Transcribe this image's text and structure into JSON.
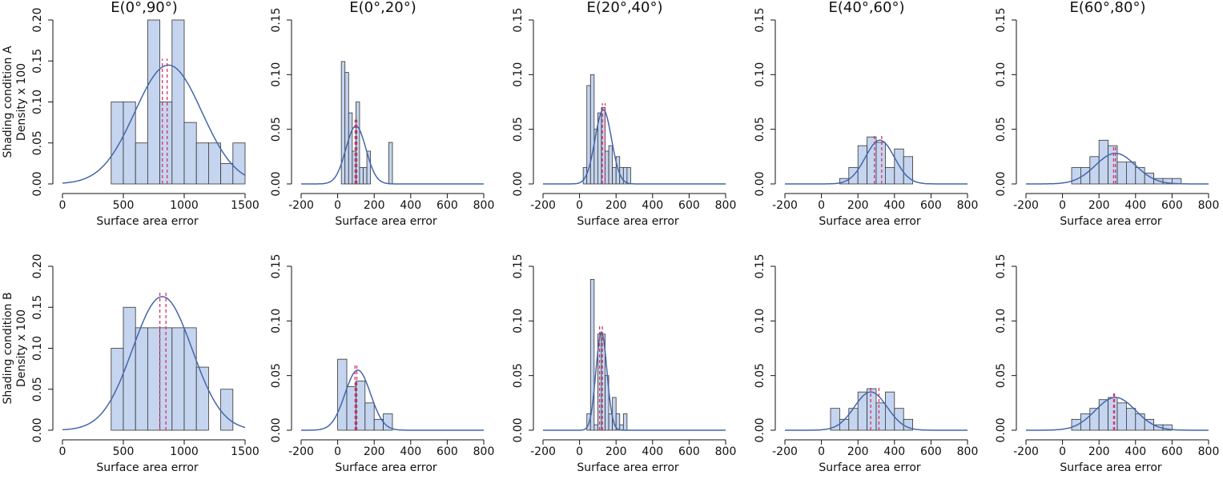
{
  "chart_data": [
    {
      "type": "histogram",
      "title": "E(0°,90°)",
      "ylabel": [
        "Shading condition A",
        "Density x 100"
      ],
      "xlabel": "Surface area error",
      "bins": [
        400,
        500,
        600,
        700,
        800,
        900,
        1000,
        1100,
        1200,
        1300,
        1400,
        1500
      ],
      "values": [
        0.1,
        0.1,
        0.05,
        0.2,
        0.1,
        0.2,
        0.075,
        0.05,
        0.05,
        0.025,
        0.05
      ],
      "color": "#c5d5ef",
      "curve": {
        "mean": 870,
        "sd": 275,
        "peak": 0.145,
        "color": "#4466aa"
      },
      "vlines": [
        820,
        860
      ],
      "vline_color": "#d6336c",
      "xlim": [
        0,
        1500
      ],
      "ylim": [
        0,
        0.2
      ],
      "xticks": [
        0,
        500,
        1000,
        1500
      ],
      "yticks": [
        {
          "value": 0,
          "label": "0.00"
        },
        {
          "value": 0.05,
          "label": "0.05"
        },
        {
          "value": 0.1,
          "label": "0.10"
        },
        {
          "value": 0.15,
          "label": "0.15"
        },
        {
          "value": 0.2,
          "label": "0.20"
        }
      ]
    },
    {
      "type": "histogram",
      "title": "E(0°,20°)",
      "xlabel": "Surface area error",
      "bins": [
        20,
        40,
        60,
        80,
        100,
        120,
        140,
        160,
        180,
        200,
        220,
        240,
        260,
        280,
        300
      ],
      "values": [
        0.112,
        0.102,
        0.065,
        0.03,
        0.075,
        0.015,
        0.015,
        0.03,
        0,
        0,
        0,
        0,
        0,
        0.038
      ],
      "color": "#c5d5ef",
      "curve": {
        "mean": 100,
        "sd": 55,
        "peak": 0.053,
        "color": "#4466aa"
      },
      "vlines": [
        95,
        105
      ],
      "vline_color": "#d6336c",
      "xlim": [
        -200,
        800
      ],
      "ylim": [
        0,
        0.15
      ],
      "xticks": [
        -200,
        0,
        200,
        400,
        600,
        800
      ],
      "yticks": [
        {
          "value": 0,
          "label": "0.00"
        },
        {
          "value": 0.05,
          "label": "0.05"
        },
        {
          "value": 0.1,
          "label": "0.10"
        },
        {
          "value": 0.15,
          "label": "0.15"
        }
      ]
    },
    {
      "type": "histogram",
      "title": "E(20°,40°)",
      "xlabel": "Surface area error",
      "bins": [
        20,
        40,
        60,
        80,
        100,
        120,
        140,
        160,
        180,
        200,
        220,
        240,
        260,
        280
      ],
      "values": [
        0.015,
        0.09,
        0.1,
        0.05,
        0.065,
        0.07,
        0.03,
        0.035,
        0.015,
        0.025,
        0.015,
        0.015,
        0.015
      ],
      "color": "#c5d5ef",
      "curve": {
        "mean": 130,
        "sd": 45,
        "peak": 0.068,
        "color": "#4466aa"
      },
      "vlines": [
        125,
        140
      ],
      "vline_color": "#d6336c",
      "xlim": [
        -200,
        800
      ],
      "ylim": [
        0,
        0.15
      ],
      "xticks": [
        -200,
        0,
        200,
        400,
        600,
        800
      ],
      "yticks": [
        {
          "value": 0,
          "label": "0.00"
        },
        {
          "value": 0.05,
          "label": "0.05"
        },
        {
          "value": 0.1,
          "label": "0.10"
        },
        {
          "value": 0.15,
          "label": "0.15"
        }
      ]
    },
    {
      "type": "histogram",
      "title": "E(40°,60°)",
      "xlabel": "Surface area error",
      "bins": [
        100,
        150,
        200,
        250,
        300,
        350,
        400,
        450,
        500
      ],
      "values": [
        0.005,
        0.015,
        0.035,
        0.043,
        0.038,
        0.015,
        0.032,
        0.025
      ],
      "color": "#c5d5ef",
      "curve": {
        "mean": 320,
        "sd": 80,
        "peak": 0.04,
        "color": "#4466aa"
      },
      "vlines": [
        290,
        330
      ],
      "vline_color": "#d6336c",
      "xlim": [
        -200,
        800
      ],
      "ylim": [
        0,
        0.15
      ],
      "xticks": [
        -200,
        0,
        200,
        400,
        600,
        800
      ],
      "yticks": [
        {
          "value": 0,
          "label": "0.00"
        },
        {
          "value": 0.05,
          "label": "0.05"
        },
        {
          "value": 0.1,
          "label": "0.10"
        },
        {
          "value": 0.15,
          "label": "0.15"
        }
      ]
    },
    {
      "type": "histogram",
      "title": "E(60°,80°)",
      "xlabel": "Surface area error",
      "bins": [
        50,
        100,
        150,
        200,
        250,
        300,
        350,
        400,
        450,
        500,
        550,
        600,
        650
      ],
      "values": [
        0.015,
        0.015,
        0.025,
        0.04,
        0.035,
        0.02,
        0.02,
        0.015,
        0.01,
        0.005,
        0.005,
        0.005
      ],
      "color": "#c5d5ef",
      "curve": {
        "mean": 290,
        "sd": 110,
        "peak": 0.028,
        "color": "#4466aa"
      },
      "vlines": [
        280,
        290
      ],
      "vline_color": "#d6336c",
      "xlim": [
        -200,
        800
      ],
      "ylim": [
        0,
        0.15
      ],
      "xticks": [
        -200,
        0,
        200,
        400,
        600,
        800
      ],
      "yticks": [
        {
          "value": 0,
          "label": "0.00"
        },
        {
          "value": 0.05,
          "label": "0.05"
        },
        {
          "value": 0.1,
          "label": "0.10"
        },
        {
          "value": 0.15,
          "label": "0.15"
        }
      ]
    },
    {
      "type": "histogram",
      "ylabel": [
        "Shading condition B",
        "Density x 100"
      ],
      "xlabel": "Surface area error",
      "bins": [
        400,
        500,
        600,
        700,
        800,
        900,
        1000,
        1100,
        1200,
        1300,
        1400
      ],
      "values": [
        0.1,
        0.15,
        0.125,
        0.125,
        0.125,
        0.125,
        0.125,
        0.077,
        0,
        0.05
      ],
      "color": "#c5d5ef",
      "curve": {
        "mean": 820,
        "sd": 245,
        "peak": 0.163,
        "color": "#4466aa"
      },
      "vlines": [
        800,
        850
      ],
      "vline_color": "#d6336c",
      "xlim": [
        0,
        1500
      ],
      "ylim": [
        0,
        0.2
      ],
      "xticks": [
        0,
        500,
        1000,
        1500
      ],
      "yticks": [
        {
          "value": 0,
          "label": "0.00"
        },
        {
          "value": 0.05,
          "label": "0.05"
        },
        {
          "value": 0.1,
          "label": "0.10"
        },
        {
          "value": 0.15,
          "label": "0.15"
        },
        {
          "value": 0.2,
          "label": "0.20"
        }
      ]
    },
    {
      "type": "histogram",
      "xlabel": "Surface area error",
      "bins": [
        0,
        50,
        100,
        150,
        200,
        250,
        300
      ],
      "values": [
        0.065,
        0.04,
        0.045,
        0.025,
        0.01,
        0.015
      ],
      "color": "#c5d5ef",
      "curve": {
        "mean": 110,
        "sd": 70,
        "peak": 0.055,
        "color": "#4466aa"
      },
      "vlines": [
        95,
        105
      ],
      "vline_color": "#d6336c",
      "xlim": [
        -200,
        800
      ],
      "ylim": [
        0,
        0.15
      ],
      "xticks": [
        -200,
        0,
        200,
        400,
        600,
        800
      ],
      "yticks": [
        {
          "value": 0,
          "label": "0.00"
        },
        {
          "value": 0.05,
          "label": "0.05"
        },
        {
          "value": 0.1,
          "label": "0.10"
        },
        {
          "value": 0.15,
          "label": "0.15"
        }
      ]
    },
    {
      "type": "histogram",
      "xlabel": "Surface area error",
      "bins": [
        40,
        60,
        80,
        100,
        120,
        140,
        160,
        180,
        200,
        220,
        240,
        260
      ],
      "values": [
        0.015,
        0.138,
        0.005,
        0.088,
        0.088,
        0.05,
        0.015,
        0.03,
        0.015,
        0.005,
        0.015
      ],
      "color": "#c5d5ef",
      "curve": {
        "mean": 120,
        "sd": 30,
        "peak": 0.09,
        "color": "#4466aa"
      },
      "vlines": [
        110,
        125
      ],
      "vline_color": "#d6336c",
      "xlim": [
        -200,
        800
      ],
      "ylim": [
        0,
        0.15
      ],
      "xticks": [
        -200,
        0,
        200,
        400,
        600,
        800
      ],
      "yticks": [
        {
          "value": 0,
          "label": "0.00"
        },
        {
          "value": 0.05,
          "label": "0.05"
        },
        {
          "value": 0.1,
          "label": "0.10"
        },
        {
          "value": 0.15,
          "label": "0.15"
        }
      ]
    },
    {
      "type": "histogram",
      "xlabel": "Surface area error",
      "bins": [
        50,
        100,
        150,
        200,
        250,
        300,
        350,
        400,
        450,
        500
      ],
      "values": [
        0.02,
        0.01,
        0.02,
        0.035,
        0.038,
        0.025,
        0.035,
        0.02,
        0.01
      ],
      "color": "#c5d5ef",
      "curve": {
        "mean": 270,
        "sd": 90,
        "peak": 0.035,
        "color": "#4466aa"
      },
      "vlines": [
        270,
        315
      ],
      "vline_color": "#d6336c",
      "xlim": [
        -200,
        800
      ],
      "ylim": [
        0,
        0.15
      ],
      "xticks": [
        -200,
        0,
        200,
        400,
        600,
        800
      ],
      "yticks": [
        {
          "value": 0,
          "label": "0.00"
        },
        {
          "value": 0.05,
          "label": "0.05"
        },
        {
          "value": 0.1,
          "label": "0.10"
        },
        {
          "value": 0.15,
          "label": "0.15"
        }
      ]
    },
    {
      "type": "histogram",
      "xlabel": "Surface area error",
      "bins": [
        50,
        100,
        150,
        200,
        250,
        300,
        350,
        400,
        450,
        500,
        550,
        600
      ],
      "values": [
        0.01,
        0.015,
        0.02,
        0.028,
        0.03,
        0.025,
        0.02,
        0.015,
        0.01,
        0.005,
        0.005
      ],
      "color": "#c5d5ef",
      "curve": {
        "mean": 290,
        "sd": 110,
        "peak": 0.03,
        "color": "#4466aa"
      },
      "vlines": [
        280,
        285
      ],
      "vline_color": "#d6336c",
      "xlim": [
        -200,
        800
      ],
      "ylim": [
        0,
        0.15
      ],
      "xticks": [
        -200,
        0,
        200,
        400,
        600,
        800
      ],
      "yticks": [
        {
          "value": 0,
          "label": "0.00"
        },
        {
          "value": 0.05,
          "label": "0.05"
        },
        {
          "value": 0.1,
          "label": "0.10"
        },
        {
          "value": 0.15,
          "label": "0.15"
        }
      ]
    }
  ]
}
